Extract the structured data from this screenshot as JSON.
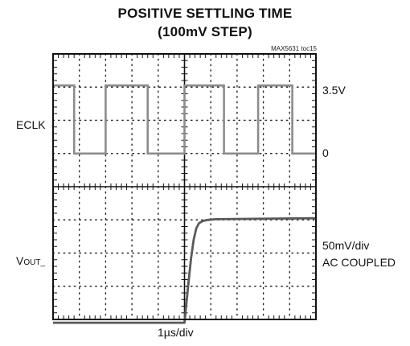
{
  "chart_data": {
    "type": "line",
    "title": "POSITIVE SETTLING TIME",
    "subtitle": "(100mV STEP)",
    "figure_tag": "MAX5631 toc15",
    "xlabel": "1µs/div",
    "grid": true,
    "x_divisions": 10,
    "y_divisions": 8,
    "x_unit": "µs",
    "traces": [
      {
        "name": "ECLK",
        "scale_label": "3.5V",
        "zero_label": "0",
        "high_level": 3.5,
        "low_level": 0,
        "x": [
          0,
          0.8,
          0.8,
          2.0,
          2.0,
          3.6,
          3.6,
          5.0,
          5.0,
          6.5,
          6.5,
          7.8,
          7.8,
          9.1,
          9.1,
          10
        ],
        "y": [
          3.5,
          3.5,
          0,
          0,
          3.5,
          3.5,
          0,
          0,
          3.5,
          3.5,
          0,
          0,
          3.5,
          3.5,
          0,
          0
        ]
      },
      {
        "name": "V_OUT_",
        "name_main": "V",
        "name_sub": "OUT_",
        "scale_label": "50mV/div",
        "coupling_label": "AC COUPLED",
        "y_unit": "div",
        "step_time": 5.0,
        "settle_time": 0.55,
        "x": [
          0,
          5.0,
          5.05,
          5.15,
          5.25,
          5.35,
          5.45,
          5.55,
          5.7,
          5.9,
          6.2,
          10
        ],
        "y": [
          -2.1,
          -2.1,
          -1.7,
          -0.9,
          -0.15,
          0.4,
          0.75,
          0.9,
          0.97,
          1.0,
          1.02,
          1.05
        ]
      }
    ]
  }
}
